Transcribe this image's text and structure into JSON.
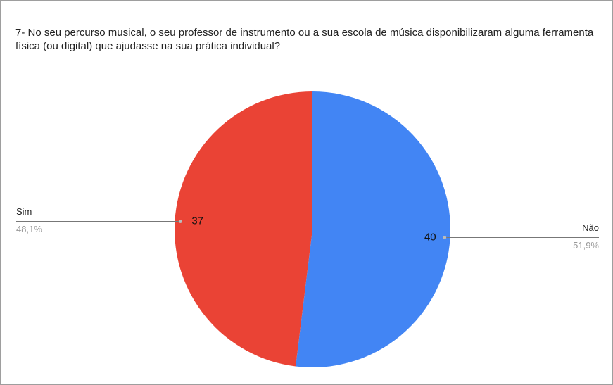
{
  "chart_data": {
    "type": "pie",
    "title": "7- No seu percurso musical, o seu professor de instrumento ou a sua escola de música disponibilizaram alguma ferramenta física (ou digital) que  ajudasse na sua prática individual?",
    "categories": [
      "Não",
      "Sim"
    ],
    "values": [
      40,
      37
    ],
    "percentages": [
      51.9,
      48.1
    ],
    "percentage_labels": [
      "51,9%",
      "48,1%"
    ],
    "colors": [
      "#4285f4",
      "#ea4335"
    ]
  }
}
